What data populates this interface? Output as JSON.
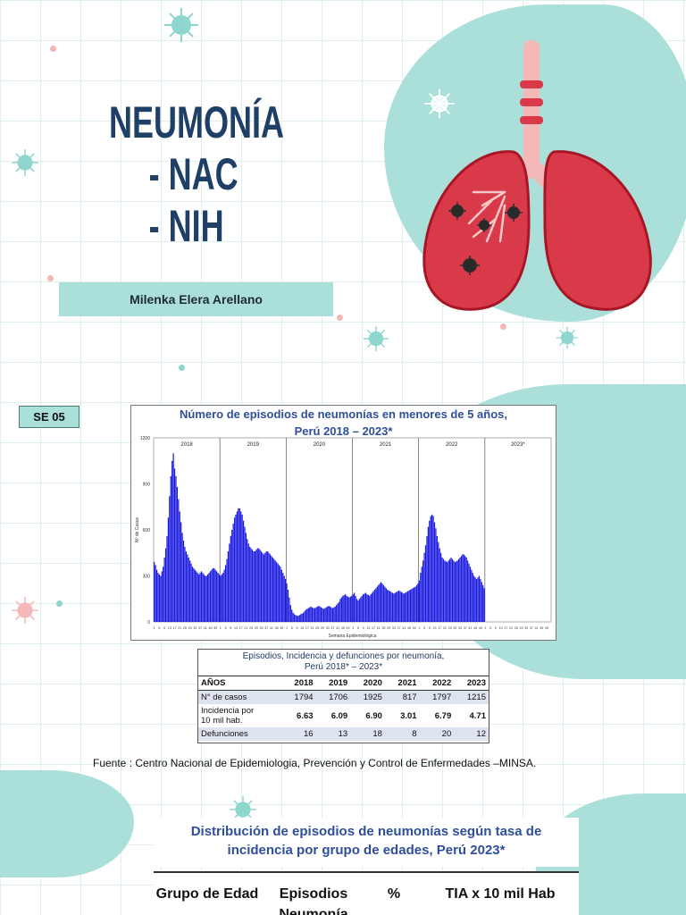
{
  "title": {
    "line1": "NEUMONÍA",
    "line2": "- NAC",
    "line3": "- NIH"
  },
  "author": "Milenka Elera Arellano",
  "badge": "SE 05",
  "colors": {
    "teal": "#abe0da",
    "navy": "#1e3f66",
    "bars": "#1a1adf",
    "lung": "#d93a4a"
  },
  "icons": [
    "virus-icon",
    "lungs-illustration"
  ],
  "chart_data": {
    "type": "bar",
    "title_line1": "Número de episodios de neumonías en menores de 5 años,",
    "title_line2": "Perú 2018 – 2023*",
    "ylabel": "Nº de Casos",
    "xlabel": "Semana Epidemiológica",
    "ylim": [
      0,
      1200
    ],
    "yticks": [
      0,
      300,
      600,
      900,
      1200
    ],
    "years": [
      "2018",
      "2019",
      "2020",
      "2021",
      "2022",
      "2023*"
    ],
    "weeks_per_year": 52,
    "weekly_values": [
      390,
      370,
      340,
      320,
      310,
      300,
      330,
      360,
      420,
      480,
      560,
      680,
      820,
      950,
      1050,
      1100,
      1000,
      950,
      880,
      800,
      720,
      650,
      580,
      530,
      490,
      460,
      440,
      420,
      400,
      380,
      360,
      350,
      340,
      330,
      320,
      310,
      320,
      330,
      320,
      310,
      300,
      300,
      310,
      320,
      330,
      340,
      350,
      350,
      340,
      330,
      320,
      310,
      300,
      310,
      320,
      340,
      370,
      410,
      460,
      510,
      560,
      600,
      640,
      680,
      700,
      720,
      740,
      740,
      720,
      700,
      660,
      620,
      580,
      540,
      510,
      490,
      480,
      470,
      460,
      460,
      470,
      480,
      480,
      470,
      460,
      450,
      440,
      450,
      460,
      460,
      450,
      440,
      430,
      420,
      410,
      400,
      390,
      380,
      370,
      360,
      340,
      320,
      300,
      280,
      250,
      210,
      160,
      110,
      80,
      60,
      50,
      45,
      40,
      40,
      45,
      50,
      55,
      60,
      70,
      80,
      85,
      90,
      95,
      100,
      95,
      90,
      90,
      95,
      100,
      105,
      100,
      95,
      90,
      85,
      90,
      95,
      100,
      105,
      100,
      95,
      90,
      95,
      100,
      110,
      120,
      130,
      150,
      160,
      170,
      175,
      180,
      170,
      165,
      160,
      165,
      170,
      180,
      190,
      170,
      150,
      140,
      150,
      160,
      170,
      180,
      185,
      190,
      180,
      175,
      170,
      180,
      190,
      200,
      210,
      220,
      230,
      240,
      250,
      260,
      250,
      240,
      230,
      220,
      210,
      205,
      200,
      195,
      190,
      185,
      190,
      195,
      200,
      205,
      200,
      195,
      190,
      185,
      190,
      195,
      200,
      205,
      210,
      215,
      220,
      225,
      230,
      240,
      250,
      270,
      320,
      360,
      400,
      450,
      500,
      560,
      620,
      660,
      690,
      700,
      690,
      650,
      610,
      560,
      520,
      480,
      450,
      420,
      410,
      400,
      395,
      390,
      400,
      410,
      420,
      410,
      400,
      390,
      395,
      400,
      410,
      420,
      430,
      440,
      440,
      430,
      420,
      400,
      380,
      360,
      340,
      320,
      300,
      290,
      280,
      290,
      300,
      280,
      260,
      240,
      220
    ],
    "table": {
      "title_line1": "Episodios, Incidencia y defunciones por neumonía,",
      "title_line2": "Perú 2018* – 2023*",
      "headers": [
        "AÑOS",
        "2018",
        "2019",
        "2020",
        "2021",
        "2022",
        "2023"
      ],
      "rows": [
        {
          "label": "N° de casos",
          "values": [
            "1794",
            "1706",
            "1925",
            "817",
            "1797",
            "1215"
          ]
        },
        {
          "label_line1": "Incidencia por",
          "label_line2": "10 mil hab.",
          "values": [
            "6.63",
            "6.09",
            "6.90",
            "3.01",
            "6.79",
            "4.71"
          ]
        },
        {
          "label": "Defunciones",
          "values": [
            "16",
            "13",
            "18",
            "8",
            "20",
            "12"
          ]
        }
      ]
    }
  },
  "source": "Fuente : Centro Nacional de Epidemiologia, Prevención y Control de Enfermedades –MINSA.",
  "distribution": {
    "title_line1": "Distribución de episodios de neumonías según tasa de",
    "title_line2": "incidencia por grupo de edades, Perú 2023*",
    "headers": {
      "col1": "Grupo de Edad",
      "col2_line1": "Episodios",
      "col2_line2": "Neumonía",
      "col3": "%",
      "col4": "TIA x 10 mil Hab"
    }
  }
}
